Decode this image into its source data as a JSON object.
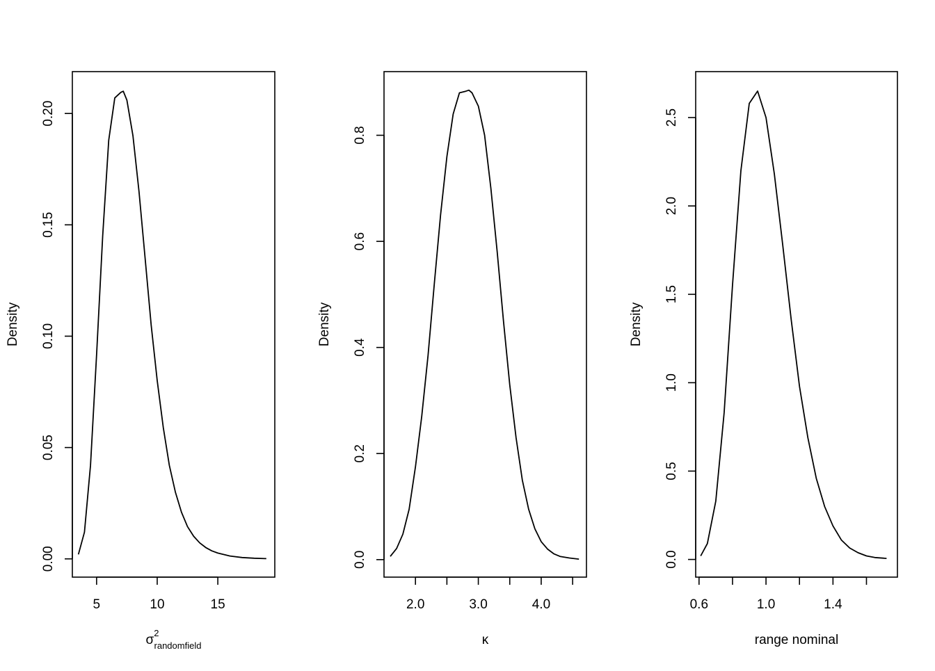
{
  "chart_data": [
    {
      "type": "line",
      "xlabel": {
        "base": "σ",
        "superscript": "2",
        "subscript": "randomfield"
      },
      "ylabel": "Density",
      "xlim": [
        3.0,
        19.7
      ],
      "ylim": [
        -0.0082,
        0.2188
      ],
      "xticks": [
        5,
        10,
        15
      ],
      "xtick_labels": [
        "5",
        "10",
        "15"
      ],
      "yticks": [
        0.0,
        0.05,
        0.1,
        0.15,
        0.2
      ],
      "ytick_labels": [
        "0.00",
        "0.05",
        "0.10",
        "0.15",
        "0.20"
      ],
      "grid": false,
      "series": [
        {
          "x": [
            3.5,
            4.0,
            4.5,
            5.0,
            5.5,
            6.0,
            6.5,
            7.0,
            7.2,
            7.5,
            8.0,
            8.5,
            9.0,
            9.5,
            10.0,
            10.5,
            11.0,
            11.5,
            12.0,
            12.5,
            13.0,
            13.5,
            14.0,
            14.5,
            15.0,
            16.0,
            17.0,
            18.0,
            19.0
          ],
          "y": [
            0.002,
            0.012,
            0.042,
            0.092,
            0.145,
            0.188,
            0.207,
            0.2095,
            0.21,
            0.206,
            0.19,
            0.165,
            0.135,
            0.105,
            0.08,
            0.059,
            0.042,
            0.03,
            0.021,
            0.0145,
            0.0102,
            0.0072,
            0.0051,
            0.0036,
            0.0026,
            0.0013,
            0.0006,
            0.0003,
            0.0001
          ]
        }
      ]
    },
    {
      "type": "line",
      "xlabel": {
        "base": "κ"
      },
      "ylabel": "Density",
      "xlim": [
        1.5,
        4.72
      ],
      "ylim": [
        -0.033,
        0.92
      ],
      "xticks": [
        2.0,
        2.5,
        3.0,
        3.5,
        4.0,
        4.5
      ],
      "xtick_labels": [
        "2.0",
        "",
        "3.0",
        "",
        "4.0",
        ""
      ],
      "yticks": [
        0.0,
        0.2,
        0.4,
        0.6,
        0.8
      ],
      "ytick_labels": [
        "0.0",
        "0.2",
        "0.4",
        "0.6",
        "0.8"
      ],
      "grid": false,
      "series": [
        {
          "x": [
            1.6,
            1.7,
            1.8,
            1.9,
            2.0,
            2.1,
            2.2,
            2.3,
            2.4,
            2.5,
            2.6,
            2.7,
            2.8,
            2.85,
            2.9,
            3.0,
            3.1,
            3.2,
            3.3,
            3.4,
            3.5,
            3.6,
            3.7,
            3.8,
            3.9,
            4.0,
            4.1,
            4.2,
            4.3,
            4.45,
            4.6
          ],
          "y": [
            0.006,
            0.021,
            0.048,
            0.095,
            0.175,
            0.27,
            0.385,
            0.52,
            0.65,
            0.76,
            0.84,
            0.88,
            0.883,
            0.885,
            0.88,
            0.855,
            0.8,
            0.7,
            0.58,
            0.45,
            0.33,
            0.23,
            0.15,
            0.095,
            0.058,
            0.034,
            0.02,
            0.011,
            0.006,
            0.003,
            0.001
          ]
        }
      ]
    },
    {
      "type": "line",
      "xlabel": {
        "base": "range nominal"
      },
      "ylabel": "Density",
      "xlim": [
        0.58,
        1.785
      ],
      "ylim": [
        -0.1,
        2.76
      ],
      "xticks": [
        0.6,
        0.8,
        1.0,
        1.2,
        1.4,
        1.6
      ],
      "xtick_labels": [
        "0.6",
        "",
        "1.0",
        "",
        "1.4",
        ""
      ],
      "yticks": [
        0.0,
        0.5,
        1.0,
        1.5,
        2.0,
        2.5
      ],
      "ytick_labels": [
        "0.0",
        "0.5",
        "1.0",
        "1.5",
        "2.0",
        "2.5"
      ],
      "grid": false,
      "series": [
        {
          "x": [
            0.61,
            0.65,
            0.7,
            0.75,
            0.8,
            0.85,
            0.9,
            0.95,
            1.0,
            1.05,
            1.1,
            1.15,
            1.2,
            1.25,
            1.3,
            1.35,
            1.4,
            1.45,
            1.5,
            1.55,
            1.6,
            1.65,
            1.72
          ],
          "y": [
            0.02,
            0.09,
            0.33,
            0.83,
            1.55,
            2.2,
            2.58,
            2.65,
            2.5,
            2.18,
            1.78,
            1.36,
            0.98,
            0.69,
            0.46,
            0.3,
            0.19,
            0.11,
            0.065,
            0.038,
            0.02,
            0.011,
            0.006
          ]
        }
      ]
    }
  ]
}
